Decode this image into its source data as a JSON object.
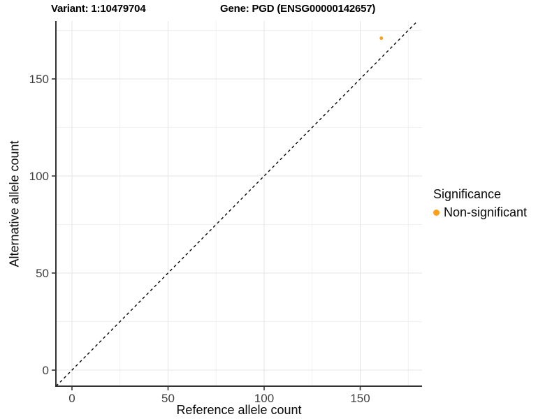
{
  "header": {
    "variant_title": "Variant: 1:10479704",
    "gene_title": "Gene: PGD (ENSG00000142657)"
  },
  "chart_data": {
    "type": "scatter",
    "title": "Variant: 1:10479704 — Gene: PGD (ENSG00000142657)",
    "xlabel": "Reference allele count",
    "ylabel": "Alternative allele count",
    "xlim": [
      -8.4,
      182
    ],
    "ylim": [
      -8.3,
      180
    ],
    "x_major_ticks": [
      0,
      50,
      100,
      150
    ],
    "y_major_ticks": [
      0,
      50,
      100,
      150
    ],
    "x_minor_ticks": [
      25,
      75,
      125,
      175
    ],
    "y_minor_ticks": [
      25,
      75,
      125,
      175
    ],
    "grid": "on",
    "panel_background": "#FFFFFF",
    "major_grid_color": "#E4E4E4",
    "minor_grid_color": "#F1F1F1",
    "axis_line_color": "#333333",
    "tick_label_color": "#404040",
    "identity_line": {
      "type": "abline",
      "slope": 1,
      "intercept": 0,
      "stroke": "#000000",
      "dash": "dashed"
    },
    "series": [
      {
        "name": "Non-significant",
        "color": "#FFA019",
        "points": [
          {
            "x": 161,
            "y": 171
          }
        ]
      }
    ],
    "legend": {
      "title": "Significance",
      "position": "right",
      "entries": [
        "Non-significant"
      ]
    }
  },
  "legend": {
    "title": "Significance",
    "items": [
      {
        "label": "Non-significant",
        "color": "#FFA019"
      }
    ]
  }
}
